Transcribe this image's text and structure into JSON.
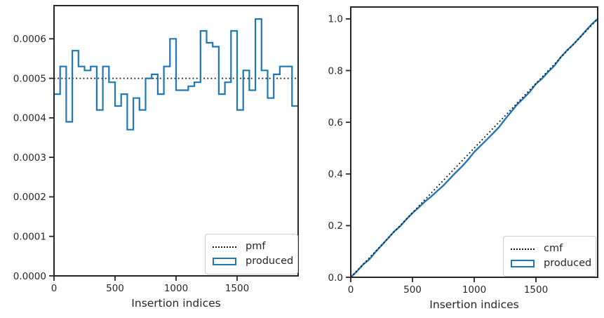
{
  "figure": {
    "background": "#ffffff",
    "text_color": "#262626",
    "accent_blue": "#1f77b4",
    "reference_black": "#111111"
  },
  "chart_data": [
    {
      "id": "pmf-subplot",
      "type": "step-histogram",
      "title": "",
      "xlabel": "Insertion indices",
      "ylabel": "",
      "grid": false,
      "xlim": [
        0,
        2000
      ],
      "ylim": [
        0,
        0.000684
      ],
      "xticks": {
        "values": [
          0,
          500,
          1000,
          1500
        ],
        "labels": [
          "0",
          "500",
          "1000",
          "1500"
        ]
      },
      "yticks": {
        "values": [
          0.0,
          0.0001,
          0.0002,
          0.0003,
          0.0004,
          0.0005,
          0.0006
        ],
        "labels": [
          "0.0000",
          "0.0001",
          "0.0002",
          "0.0003",
          "0.0004",
          "0.0005",
          "0.0006"
        ]
      },
      "legend": {
        "position": "lower right",
        "entries": [
          {
            "label": "pmf",
            "style": "black-dotted-line"
          },
          {
            "label": "produced",
            "style": "blue-step-outline"
          }
        ]
      },
      "pmf_reference_value": 0.0005,
      "bins": {
        "start": 0,
        "width": 50,
        "heights": [
          0.00046,
          0.00053,
          0.00039,
          0.00057,
          0.00053,
          0.00052,
          0.00053,
          0.00042,
          0.00053,
          0.00049,
          0.00043,
          0.00046,
          0.00037,
          0.00045,
          0.00042,
          0.0005,
          0.00051,
          0.00046,
          0.00053,
          0.0006,
          0.00047,
          0.00047,
          0.00048,
          0.00049,
          0.00062,
          0.00059,
          0.00058,
          0.00046,
          0.00049,
          0.00062,
          0.00042,
          0.00052,
          0.00047,
          0.00065,
          0.00052,
          0.00045,
          0.00051,
          0.00053,
          0.00053,
          0.00043
        ]
      }
    },
    {
      "id": "cmf-subplot",
      "type": "line",
      "title": "",
      "xlabel": "Insertion indices",
      "ylabel": "",
      "grid": false,
      "xlim": [
        0,
        2000
      ],
      "ylim": [
        0,
        1.046
      ],
      "xticks": {
        "values": [
          0,
          500,
          1000,
          1500
        ],
        "labels": [
          "0",
          "500",
          "1000",
          "1500"
        ]
      },
      "yticks": {
        "values": [
          0.0,
          0.2,
          0.4,
          0.6,
          0.8,
          1.0
        ],
        "labels": [
          "0.0",
          "0.2",
          "0.4",
          "0.6",
          "0.8",
          "1.0"
        ]
      },
      "legend": {
        "position": "lower right",
        "entries": [
          {
            "label": "cmf",
            "style": "black-dotted-line"
          },
          {
            "label": "produced",
            "style": "blue-step-outline"
          }
        ]
      },
      "cmf_reference": {
        "x": [
          0,
          2000
        ],
        "y": [
          0.0,
          1.0
        ]
      },
      "produced": {
        "x_start": 0,
        "x_step": 50,
        "y": [
          0,
          0.023,
          0.0495,
          0.069,
          0.0975,
          0.124,
          0.15,
          0.1765,
          0.1975,
          0.224,
          0.2485,
          0.27,
          0.293,
          0.3115,
          0.334,
          0.355,
          0.38,
          0.4055,
          0.4285,
          0.455,
          0.485,
          0.5085,
          0.532,
          0.556,
          0.5805,
          0.6115,
          0.641,
          0.67,
          0.693,
          0.7175,
          0.7485,
          0.7695,
          0.7955,
          0.819,
          0.8515,
          0.8775,
          0.9,
          0.9255,
          0.952,
          0.9785,
          1.0
        ]
      }
    }
  ]
}
